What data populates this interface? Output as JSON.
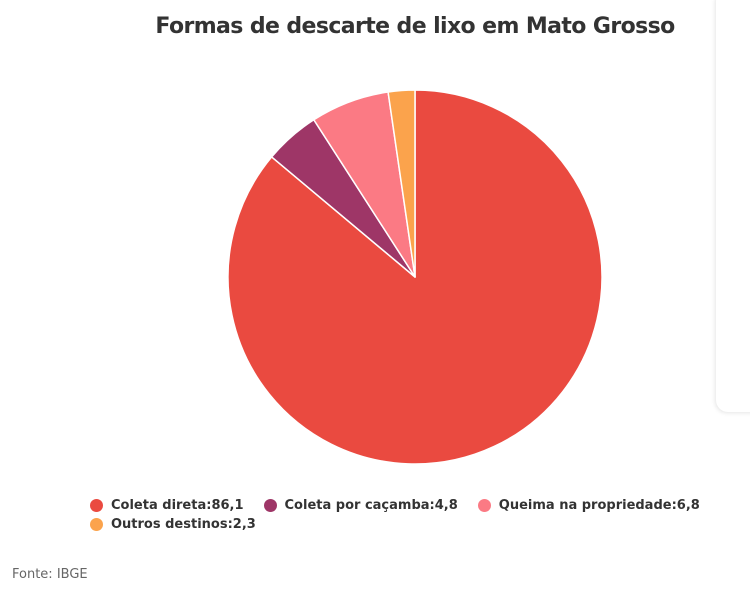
{
  "chart_data": {
    "type": "pie",
    "title": "Formas de descarte de lixo em Mato Grosso",
    "slices": [
      {
        "label": "Coleta direta",
        "value": 86.1,
        "value_text": "86,1",
        "color": "#ea4a40"
      },
      {
        "label": "Coleta por caçamba",
        "value": 4.8,
        "value_text": "4,8",
        "color": "#9e3667"
      },
      {
        "label": "Queima na propriedade",
        "value": 6.8,
        "value_text": "6,8",
        "color": "#fb7a84"
      },
      {
        "label": "Outros destinos",
        "value": 2.3,
        "value_text": "2,3",
        "color": "#fba34c"
      }
    ],
    "slice_order_clockwise_from_top": [
      "Coleta direta",
      "Coleta por caçamba",
      "Queima na propriedade",
      "Outros destinos"
    ],
    "legend_position": "bottom"
  },
  "source": "Fonte: IBGE"
}
